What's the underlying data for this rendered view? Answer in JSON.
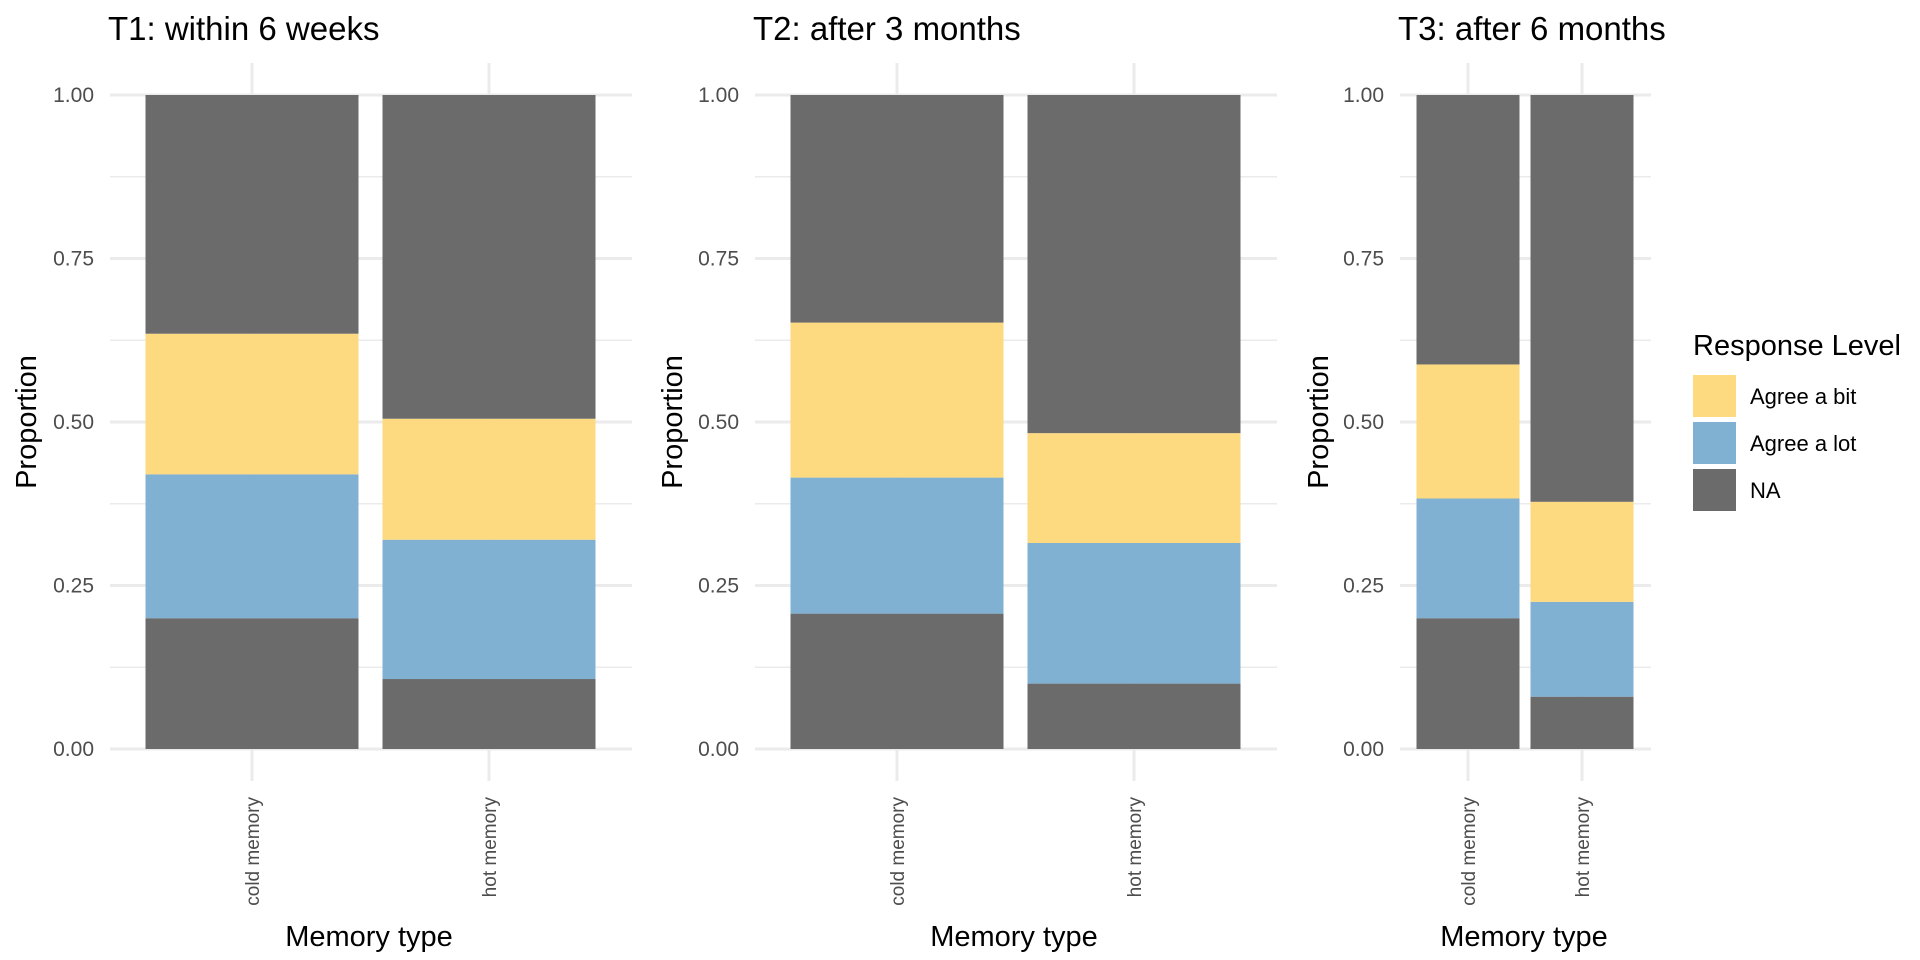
{
  "chart_data": [
    {
      "type": "bar",
      "stacked": true,
      "title": "T1: within 6 weeks",
      "xlabel": "Memory type",
      "ylabel": "Proportion",
      "ylim": [
        0,
        1
      ],
      "yticks": [
        "0.00",
        "0.25",
        "0.50",
        "0.75",
        "1.00"
      ],
      "categories": [
        "cold memory",
        "hot memory"
      ],
      "segments": [
        [
          {
            "fill": "NA",
            "from": 0.0,
            "to": 0.2
          },
          {
            "fill": "Agree a lot",
            "from": 0.2,
            "to": 0.42
          },
          {
            "fill": "Agree a bit",
            "from": 0.42,
            "to": 0.635
          },
          {
            "fill": "NA",
            "from": 0.635,
            "to": 1.0
          }
        ],
        [
          {
            "fill": "NA",
            "from": 0.0,
            "to": 0.107
          },
          {
            "fill": "Agree a lot",
            "from": 0.107,
            "to": 0.32
          },
          {
            "fill": "Agree a bit",
            "from": 0.32,
            "to": 0.505
          },
          {
            "fill": "NA",
            "from": 0.505,
            "to": 1.0
          }
        ]
      ]
    },
    {
      "type": "bar",
      "stacked": true,
      "title": "T2: after 3 months",
      "xlabel": "Memory type",
      "ylabel": "Proportion",
      "ylim": [
        0,
        1
      ],
      "yticks": [
        "0.00",
        "0.25",
        "0.50",
        "0.75",
        "1.00"
      ],
      "categories": [
        "cold memory",
        "hot memory"
      ],
      "segments": [
        [
          {
            "fill": "NA",
            "from": 0.0,
            "to": 0.207
          },
          {
            "fill": "Agree a lot",
            "from": 0.207,
            "to": 0.415
          },
          {
            "fill": "Agree a bit",
            "from": 0.415,
            "to": 0.652
          },
          {
            "fill": "NA",
            "from": 0.652,
            "to": 1.0
          }
        ],
        [
          {
            "fill": "NA",
            "from": 0.0,
            "to": 0.1
          },
          {
            "fill": "Agree a lot",
            "from": 0.1,
            "to": 0.315
          },
          {
            "fill": "Agree a bit",
            "from": 0.315,
            "to": 0.483
          },
          {
            "fill": "NA",
            "from": 0.483,
            "to": 1.0
          }
        ]
      ]
    },
    {
      "type": "bar",
      "stacked": true,
      "title": "T3: after 6 months",
      "xlabel": "Memory type",
      "ylabel": "Proportion",
      "ylim": [
        0,
        1
      ],
      "yticks": [
        "0.00",
        "0.25",
        "0.50",
        "0.75",
        "1.00"
      ],
      "categories": [
        "cold memory",
        "hot memory"
      ],
      "segments": [
        [
          {
            "fill": "NA",
            "from": 0.0,
            "to": 0.2
          },
          {
            "fill": "Agree a lot",
            "from": 0.2,
            "to": 0.383
          },
          {
            "fill": "Agree a bit",
            "from": 0.383,
            "to": 0.588
          },
          {
            "fill": "NA",
            "from": 0.588,
            "to": 1.0
          }
        ],
        [
          {
            "fill": "NA",
            "from": 0.0,
            "to": 0.08
          },
          {
            "fill": "Agree a lot",
            "from": 0.08,
            "to": 0.225
          },
          {
            "fill": "Agree a bit",
            "from": 0.225,
            "to": 0.378
          },
          {
            "fill": "NA",
            "from": 0.378,
            "to": 1.0
          }
        ]
      ]
    }
  ],
  "legend": {
    "title": "Response Level",
    "placement": "right",
    "items": [
      {
        "label": "Agree a bit",
        "color": "#FDD97F"
      },
      {
        "label": "Agree a lot",
        "color": "#80B1D3"
      },
      {
        "label": "NA",
        "color": "#6B6B6B"
      }
    ]
  },
  "colors": {
    "Agree a bit": "#FDD97F",
    "Agree a lot": "#80B1D3",
    "NA": "#6B6B6B",
    "gridline": "#EBEBEB",
    "tick_text": "#4D4D4D"
  }
}
